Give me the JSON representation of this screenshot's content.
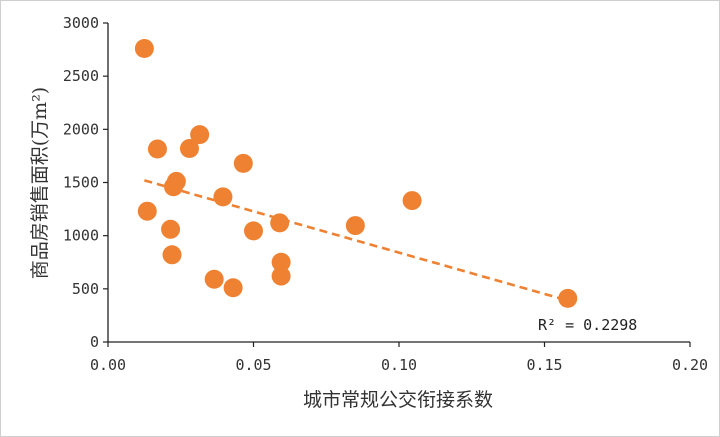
{
  "chart_data": {
    "type": "scatter",
    "xlabel": "城市常规公交衔接系数",
    "ylabel": "商品房销售面积(万m²)",
    "xlim": [
      0,
      0.2
    ],
    "ylim": [
      0,
      3000
    ],
    "x_ticks": [
      "0.00",
      "0.05",
      "0.10",
      "0.15",
      "0.20"
    ],
    "y_ticks": [
      "0",
      "500",
      "1000",
      "1500",
      "2000",
      "2500",
      "3000"
    ],
    "x_tick_values": [
      0,
      0.05,
      0.1,
      0.15,
      0.2
    ],
    "y_tick_values": [
      0,
      500,
      1000,
      1500,
      2000,
      2500,
      3000
    ],
    "grid": false,
    "legend": "none",
    "marker_color": "#EE8232",
    "series": [
      {
        "points": [
          {
            "x": 0.0125,
            "y": 2760
          },
          {
            "x": 0.0135,
            "y": 1230
          },
          {
            "x": 0.017,
            "y": 1815
          },
          {
            "x": 0.0215,
            "y": 1060
          },
          {
            "x": 0.022,
            "y": 820
          },
          {
            "x": 0.0225,
            "y": 1460
          },
          {
            "x": 0.0235,
            "y": 1510
          },
          {
            "x": 0.028,
            "y": 1820
          },
          {
            "x": 0.0315,
            "y": 1950
          },
          {
            "x": 0.0365,
            "y": 590
          },
          {
            "x": 0.0395,
            "y": 1365
          },
          {
            "x": 0.043,
            "y": 510
          },
          {
            "x": 0.0465,
            "y": 1680
          },
          {
            "x": 0.05,
            "y": 1045
          },
          {
            "x": 0.059,
            "y": 1120
          },
          {
            "x": 0.0595,
            "y": 750
          },
          {
            "x": 0.0595,
            "y": 620
          },
          {
            "x": 0.085,
            "y": 1095
          },
          {
            "x": 0.1045,
            "y": 1330
          },
          {
            "x": 0.158,
            "y": 410
          }
        ]
      }
    ],
    "trendline": {
      "x": [
        0.0125,
        0.158
      ],
      "y": [
        1520,
        390
      ],
      "color": "#EE8232",
      "style": "dashed"
    },
    "annotation": "R² = 0.2298"
  }
}
